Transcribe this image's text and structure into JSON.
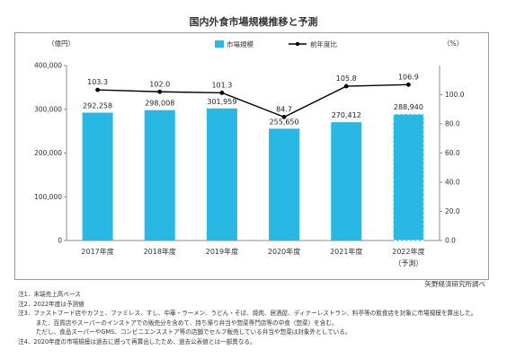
{
  "title": "国内外食市場規模推移と予測",
  "chart_data": {
    "type": "bar",
    "categories": [
      "2017年度",
      "2018年度",
      "2019年度",
      "2020年度",
      "2021年度",
      "2022年度"
    ],
    "forecast_sublabel": "（予測）",
    "series": [
      {
        "name": "市場規模",
        "type": "bar",
        "axis": "left",
        "values": [
          292258,
          298008,
          301959,
          255650,
          270412,
          288940
        ],
        "value_labels": [
          "292,258",
          "298,008",
          "301,959",
          "255,650",
          "270,412",
          "288,940"
        ],
        "color": "#29b8e3"
      },
      {
        "name": "前年度比",
        "type": "line",
        "axis": "right",
        "values": [
          103.3,
          102.0,
          101.3,
          84.7,
          105.8,
          106.9
        ],
        "value_labels": [
          "103.3",
          "102.0",
          "101.3",
          "84.7",
          "105.8",
          "106.9"
        ],
        "color": "#000000"
      }
    ],
    "left_axis": {
      "unit": "（億円）",
      "range": [
        0,
        400000
      ],
      "ticks": [
        "0",
        "100,000",
        "200,000",
        "300,000",
        "400,000"
      ]
    },
    "right_axis": {
      "unit": "（%）",
      "range": [
        0,
        120
      ],
      "ticks": [
        "0.0",
        "20.0",
        "40.0",
        "60.0",
        "80.0",
        "100.0"
      ]
    },
    "forecast_index": 5,
    "grid": false,
    "legend_position": "top"
  },
  "source": "矢野経済研究所調べ",
  "notes": [
    "注1．末端売上高ベース",
    "注2．2022年度は予測値",
    "注3．ファストフード店やカフェ、ファミレス、すし、中華・ラーメン、うどん・そば、焼肉、居酒屋、ディナーレストラン、料亭等の飲食店を対象に市場規模を算出した。",
    "　　　また、百貨店やスーパーのインストアでの販売分を含めて、持ち帰り弁当や惣菜専門店等の中食（惣菜）を含む。",
    "　　　ただし、食品スーパーやGMS、コンビニエンスストア等の店舗でセルフ販売している弁当や惣菜は対象外としている。",
    "注4．2020年度の市場規模は過去に遡って再算出したため、過去公表値とは一部異なる。"
  ]
}
